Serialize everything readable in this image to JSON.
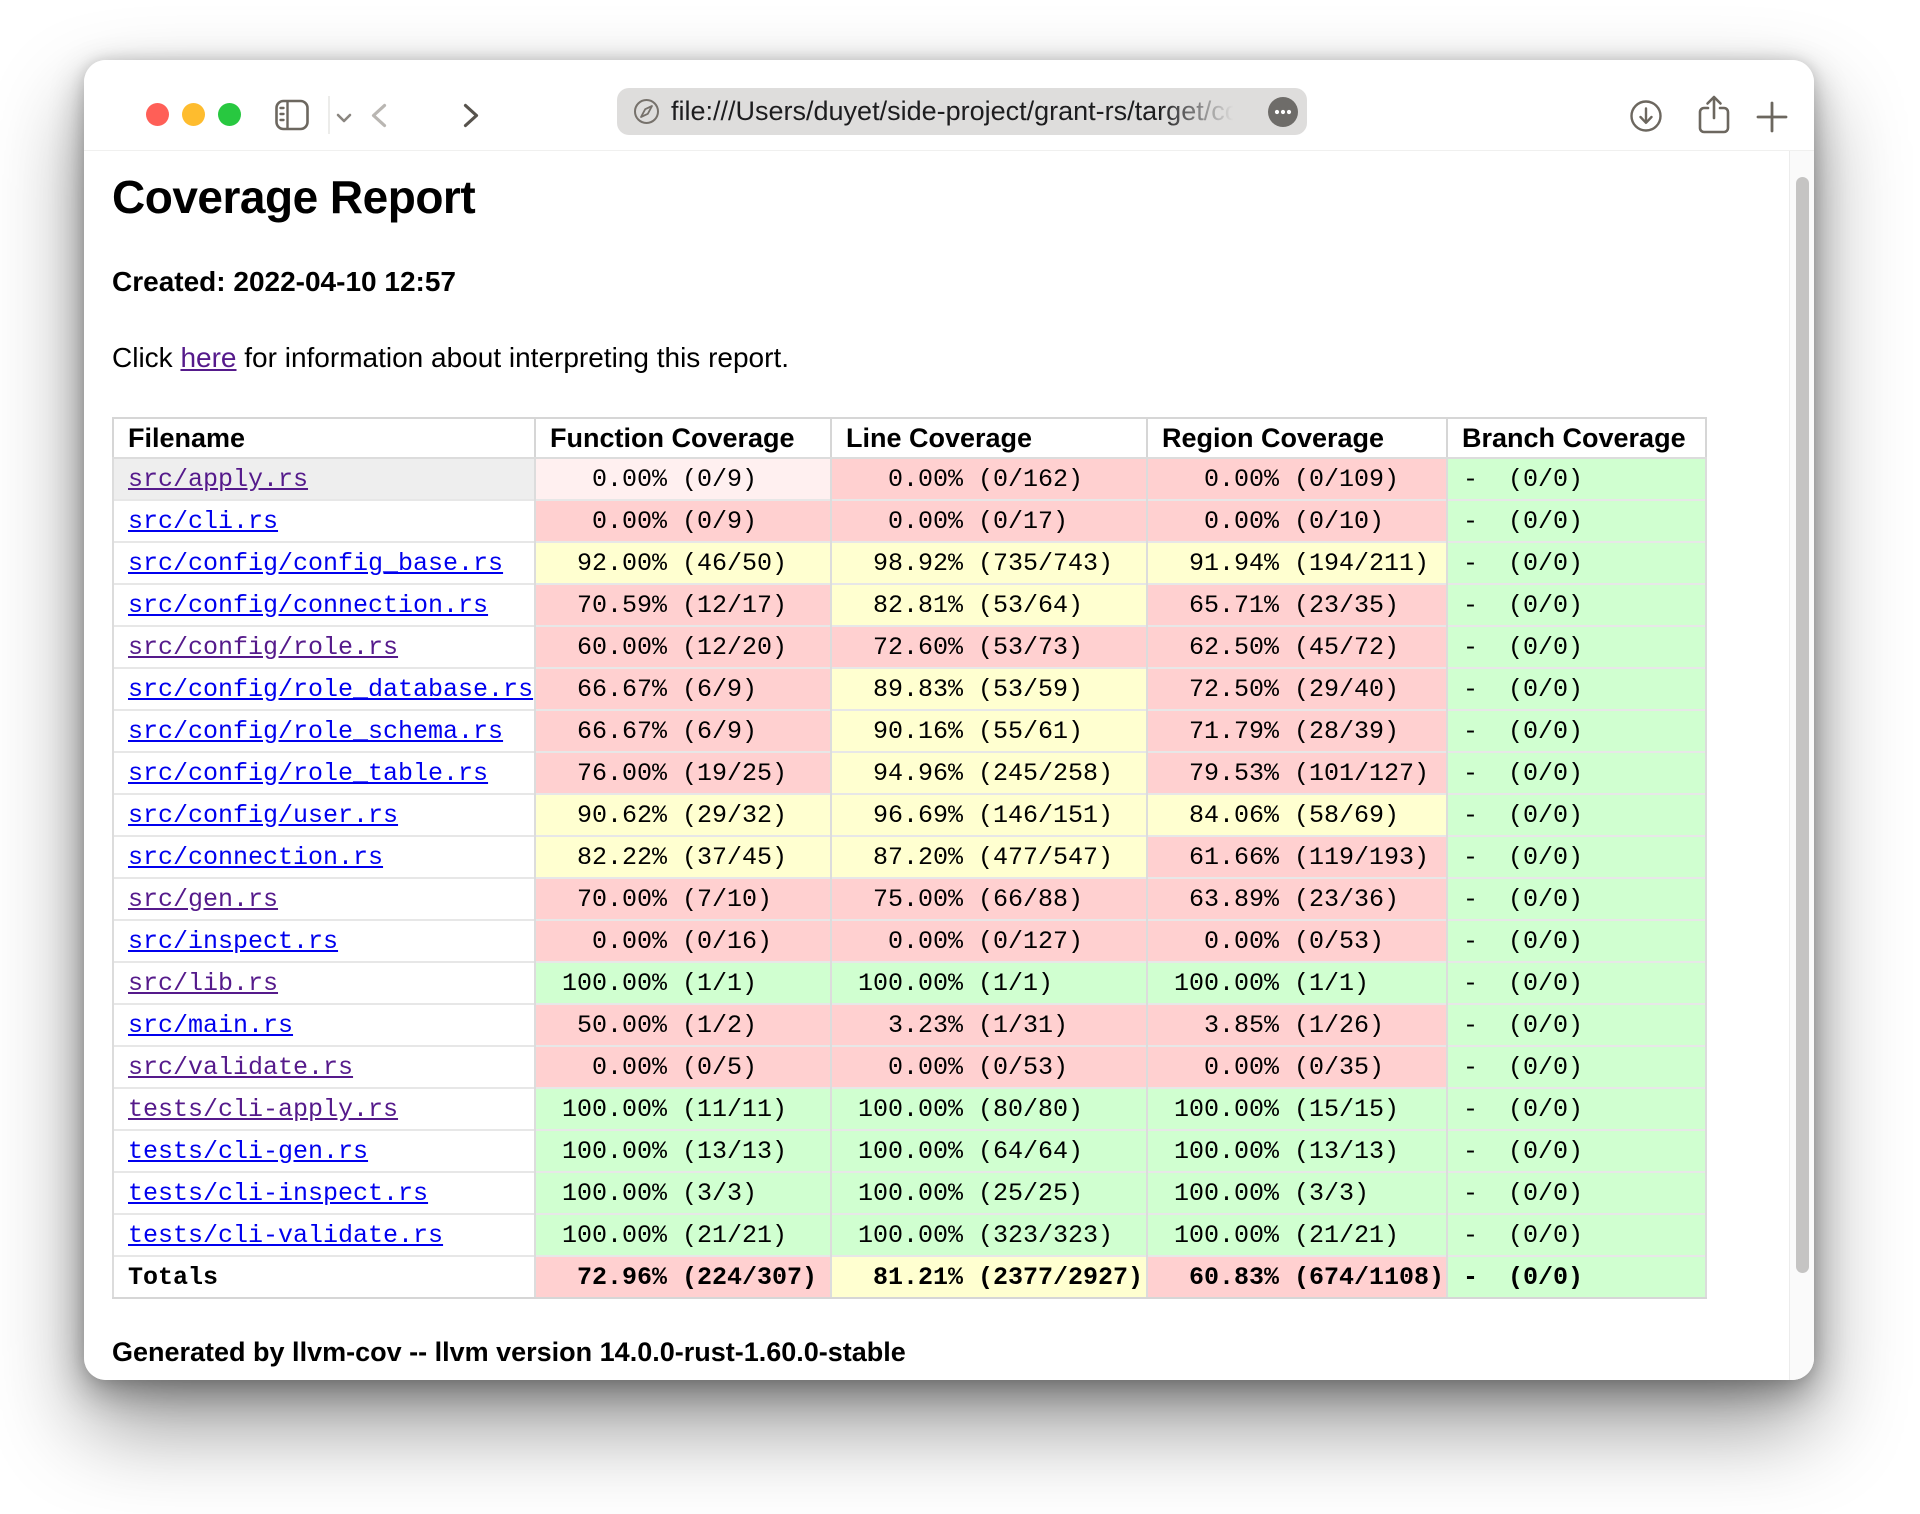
{
  "browser": {
    "url": "file:///Users/duyet/side-project/grant-rs/target/cov/in",
    "icons": {
      "traffic": [
        "close-button",
        "minimize-button",
        "zoom-button"
      ],
      "left": [
        "sidebar-toggle-icon",
        "chevron-down-icon",
        "back-chevron-icon",
        "forward-chevron-icon"
      ],
      "url_bar": [
        "compass-icon",
        "ellipsis-icon"
      ],
      "right": [
        "download-icon",
        "share-icon",
        "plus-icon"
      ]
    }
  },
  "page": {
    "title": "Coverage Report",
    "created": "Created: 2022-04-10 12:57",
    "info": {
      "prefix": "Click ",
      "link": "here",
      "suffix": " for information about interpreting this report."
    },
    "footer": "Generated by llvm-cov -- llvm version 14.0.0-rust-1.60.0-stable"
  },
  "colors": {
    "red_cell": "#ffd0d0",
    "red_cell_hover": "#fff0f0",
    "yellow_cell": "#ffffd0",
    "green_cell": "#d0ffd0",
    "hovered_row": "#eeeeee",
    "link": "#0000ee",
    "link_visited": "#551a8b"
  },
  "table": {
    "headers": [
      "Filename",
      "Function Coverage",
      "Line Coverage",
      "Region Coverage",
      "Branch Coverage"
    ],
    "rows": [
      {
        "filename": "src/apply.rs",
        "visited": true,
        "hovered": true,
        "cells": [
          {
            "text": "  0.00% (0/9)",
            "color": "red-hover"
          },
          {
            "text": "  0.00% (0/162)",
            "color": "red"
          },
          {
            "text": "  0.00% (0/109)",
            "color": "red"
          },
          {
            "text": "-  (0/0)",
            "color": "green"
          }
        ]
      },
      {
        "filename": "src/cli.rs",
        "visited": false,
        "hovered": false,
        "cells": [
          {
            "text": "  0.00% (0/9)",
            "color": "red"
          },
          {
            "text": "  0.00% (0/17)",
            "color": "red"
          },
          {
            "text": "  0.00% (0/10)",
            "color": "red"
          },
          {
            "text": "-  (0/0)",
            "color": "green"
          }
        ]
      },
      {
        "filename": "src/config/config_base.rs",
        "visited": false,
        "hovered": false,
        "cells": [
          {
            "text": " 92.00% (46/50)",
            "color": "yellow"
          },
          {
            "text": " 98.92% (735/743)",
            "color": "yellow"
          },
          {
            "text": " 91.94% (194/211)",
            "color": "yellow"
          },
          {
            "text": "-  (0/0)",
            "color": "green"
          }
        ]
      },
      {
        "filename": "src/config/connection.rs",
        "visited": false,
        "hovered": false,
        "cells": [
          {
            "text": " 70.59% (12/17)",
            "color": "red"
          },
          {
            "text": " 82.81% (53/64)",
            "color": "yellow"
          },
          {
            "text": " 65.71% (23/35)",
            "color": "red"
          },
          {
            "text": "-  (0/0)",
            "color": "green"
          }
        ]
      },
      {
        "filename": "src/config/role.rs",
        "visited": true,
        "hovered": false,
        "cells": [
          {
            "text": " 60.00% (12/20)",
            "color": "red"
          },
          {
            "text": " 72.60% (53/73)",
            "color": "red"
          },
          {
            "text": " 62.50% (45/72)",
            "color": "red"
          },
          {
            "text": "-  (0/0)",
            "color": "green"
          }
        ]
      },
      {
        "filename": "src/config/role_database.rs",
        "visited": false,
        "hovered": false,
        "cells": [
          {
            "text": " 66.67% (6/9)",
            "color": "red"
          },
          {
            "text": " 89.83% (53/59)",
            "color": "yellow"
          },
          {
            "text": " 72.50% (29/40)",
            "color": "red"
          },
          {
            "text": "-  (0/0)",
            "color": "green"
          }
        ]
      },
      {
        "filename": "src/config/role_schema.rs",
        "visited": false,
        "hovered": false,
        "cells": [
          {
            "text": " 66.67% (6/9)",
            "color": "red"
          },
          {
            "text": " 90.16% (55/61)",
            "color": "yellow"
          },
          {
            "text": " 71.79% (28/39)",
            "color": "red"
          },
          {
            "text": "-  (0/0)",
            "color": "green"
          }
        ]
      },
      {
        "filename": "src/config/role_table.rs",
        "visited": false,
        "hovered": false,
        "cells": [
          {
            "text": " 76.00% (19/25)",
            "color": "red"
          },
          {
            "text": " 94.96% (245/258)",
            "color": "yellow"
          },
          {
            "text": " 79.53% (101/127)",
            "color": "red"
          },
          {
            "text": "-  (0/0)",
            "color": "green"
          }
        ]
      },
      {
        "filename": "src/config/user.rs",
        "visited": false,
        "hovered": false,
        "cells": [
          {
            "text": " 90.62% (29/32)",
            "color": "yellow"
          },
          {
            "text": " 96.69% (146/151)",
            "color": "yellow"
          },
          {
            "text": " 84.06% (58/69)",
            "color": "yellow"
          },
          {
            "text": "-  (0/0)",
            "color": "green"
          }
        ]
      },
      {
        "filename": "src/connection.rs",
        "visited": false,
        "hovered": false,
        "cells": [
          {
            "text": " 82.22% (37/45)",
            "color": "yellow"
          },
          {
            "text": " 87.20% (477/547)",
            "color": "yellow"
          },
          {
            "text": " 61.66% (119/193)",
            "color": "red"
          },
          {
            "text": "-  (0/0)",
            "color": "green"
          }
        ]
      },
      {
        "filename": "src/gen.rs",
        "visited": true,
        "hovered": false,
        "cells": [
          {
            "text": " 70.00% (7/10)",
            "color": "red"
          },
          {
            "text": " 75.00% (66/88)",
            "color": "red"
          },
          {
            "text": " 63.89% (23/36)",
            "color": "red"
          },
          {
            "text": "-  (0/0)",
            "color": "green"
          }
        ]
      },
      {
        "filename": "src/inspect.rs",
        "visited": false,
        "hovered": false,
        "cells": [
          {
            "text": "  0.00% (0/16)",
            "color": "red"
          },
          {
            "text": "  0.00% (0/127)",
            "color": "red"
          },
          {
            "text": "  0.00% (0/53)",
            "color": "red"
          },
          {
            "text": "-  (0/0)",
            "color": "green"
          }
        ]
      },
      {
        "filename": "src/lib.rs",
        "visited": true,
        "hovered": false,
        "cells": [
          {
            "text": "100.00% (1/1)",
            "color": "green"
          },
          {
            "text": "100.00% (1/1)",
            "color": "green"
          },
          {
            "text": "100.00% (1/1)",
            "color": "green"
          },
          {
            "text": "-  (0/0)",
            "color": "green"
          }
        ]
      },
      {
        "filename": "src/main.rs",
        "visited": false,
        "hovered": false,
        "cells": [
          {
            "text": " 50.00% (1/2)",
            "color": "red"
          },
          {
            "text": "  3.23% (1/31)",
            "color": "red"
          },
          {
            "text": "  3.85% (1/26)",
            "color": "red"
          },
          {
            "text": "-  (0/0)",
            "color": "green"
          }
        ]
      },
      {
        "filename": "src/validate.rs",
        "visited": true,
        "hovered": false,
        "cells": [
          {
            "text": "  0.00% (0/5)",
            "color": "red"
          },
          {
            "text": "  0.00% (0/53)",
            "color": "red"
          },
          {
            "text": "  0.00% (0/35)",
            "color": "red"
          },
          {
            "text": "-  (0/0)",
            "color": "green"
          }
        ]
      },
      {
        "filename": "tests/cli-apply.rs",
        "visited": true,
        "hovered": false,
        "cells": [
          {
            "text": "100.00% (11/11)",
            "color": "green"
          },
          {
            "text": "100.00% (80/80)",
            "color": "green"
          },
          {
            "text": "100.00% (15/15)",
            "color": "green"
          },
          {
            "text": "-  (0/0)",
            "color": "green"
          }
        ]
      },
      {
        "filename": "tests/cli-gen.rs",
        "visited": false,
        "hovered": false,
        "cells": [
          {
            "text": "100.00% (13/13)",
            "color": "green"
          },
          {
            "text": "100.00% (64/64)",
            "color": "green"
          },
          {
            "text": "100.00% (13/13)",
            "color": "green"
          },
          {
            "text": "-  (0/0)",
            "color": "green"
          }
        ]
      },
      {
        "filename": "tests/cli-inspect.rs",
        "visited": false,
        "hovered": false,
        "cells": [
          {
            "text": "100.00% (3/3)",
            "color": "green"
          },
          {
            "text": "100.00% (25/25)",
            "color": "green"
          },
          {
            "text": "100.00% (3/3)",
            "color": "green"
          },
          {
            "text": "-  (0/0)",
            "color": "green"
          }
        ]
      },
      {
        "filename": "tests/cli-validate.rs",
        "visited": false,
        "hovered": false,
        "cells": [
          {
            "text": "100.00% (21/21)",
            "color": "green"
          },
          {
            "text": "100.00% (323/323)",
            "color": "green"
          },
          {
            "text": "100.00% (21/21)",
            "color": "green"
          },
          {
            "text": "-  (0/0)",
            "color": "green"
          }
        ]
      }
    ],
    "totals": {
      "filename": "Totals",
      "cells": [
        {
          "text": " 72.96% (224/307)",
          "color": "red"
        },
        {
          "text": " 81.21% (2377/2927)",
          "color": "yellow"
        },
        {
          "text": " 60.83% (674/1108)",
          "color": "red"
        },
        {
          "text": "-  (0/0)",
          "color": "green"
        }
      ]
    }
  }
}
